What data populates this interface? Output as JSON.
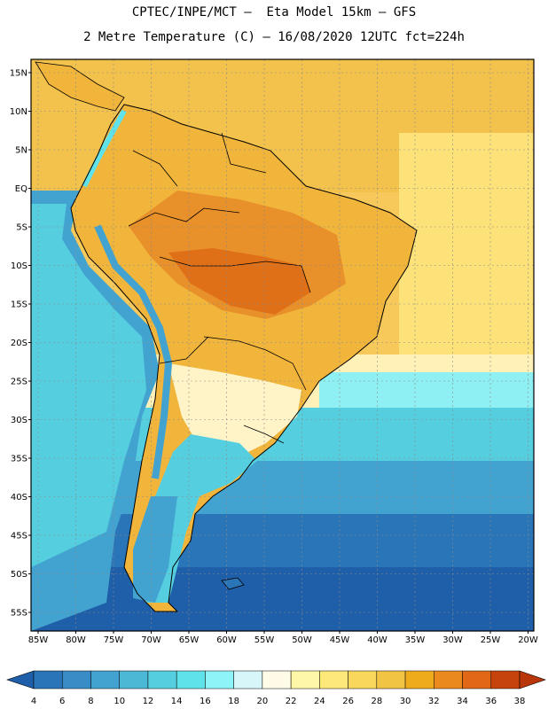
{
  "header": {
    "line1": "CPTEC/INPE/MCT –  Eta Model 15km – GFS",
    "line2": "2 Metre Temperature (C) – 16/08/2020 12UTC fct=224h"
  },
  "axes": {
    "lon_labels": [
      "85W",
      "80W",
      "75W",
      "70W",
      "65W",
      "60W",
      "55W",
      "50W",
      "45W",
      "40W",
      "35W",
      "30W",
      "25W",
      "20W"
    ],
    "lat_labels": [
      "15N",
      "10N",
      "5N",
      "EQ",
      "5S",
      "10S",
      "15S",
      "20S",
      "25S",
      "30S",
      "35S",
      "40S",
      "45S",
      "50S",
      "55S"
    ]
  },
  "colorbar": {
    "labels": [
      "4",
      "6",
      "8",
      "10",
      "12",
      "14",
      "16",
      "18",
      "20",
      "22",
      "24",
      "26",
      "28",
      "30",
      "32",
      "34",
      "36",
      "38"
    ],
    "colors": [
      "#1f5ea8",
      "#2a74b8",
      "#3a8cc6",
      "#43a3d0",
      "#4cb8d6",
      "#55cfe0",
      "#5fe2ea",
      "#8ff4f8",
      "#d6f6fa",
      "#fffbe6",
      "#fff7a8",
      "#fde87a",
      "#f8d75a",
      "#f2c443",
      "#eeab1c",
      "#ea8a1e",
      "#e06816",
      "#c7430c",
      "#b8360a"
    ]
  }
}
